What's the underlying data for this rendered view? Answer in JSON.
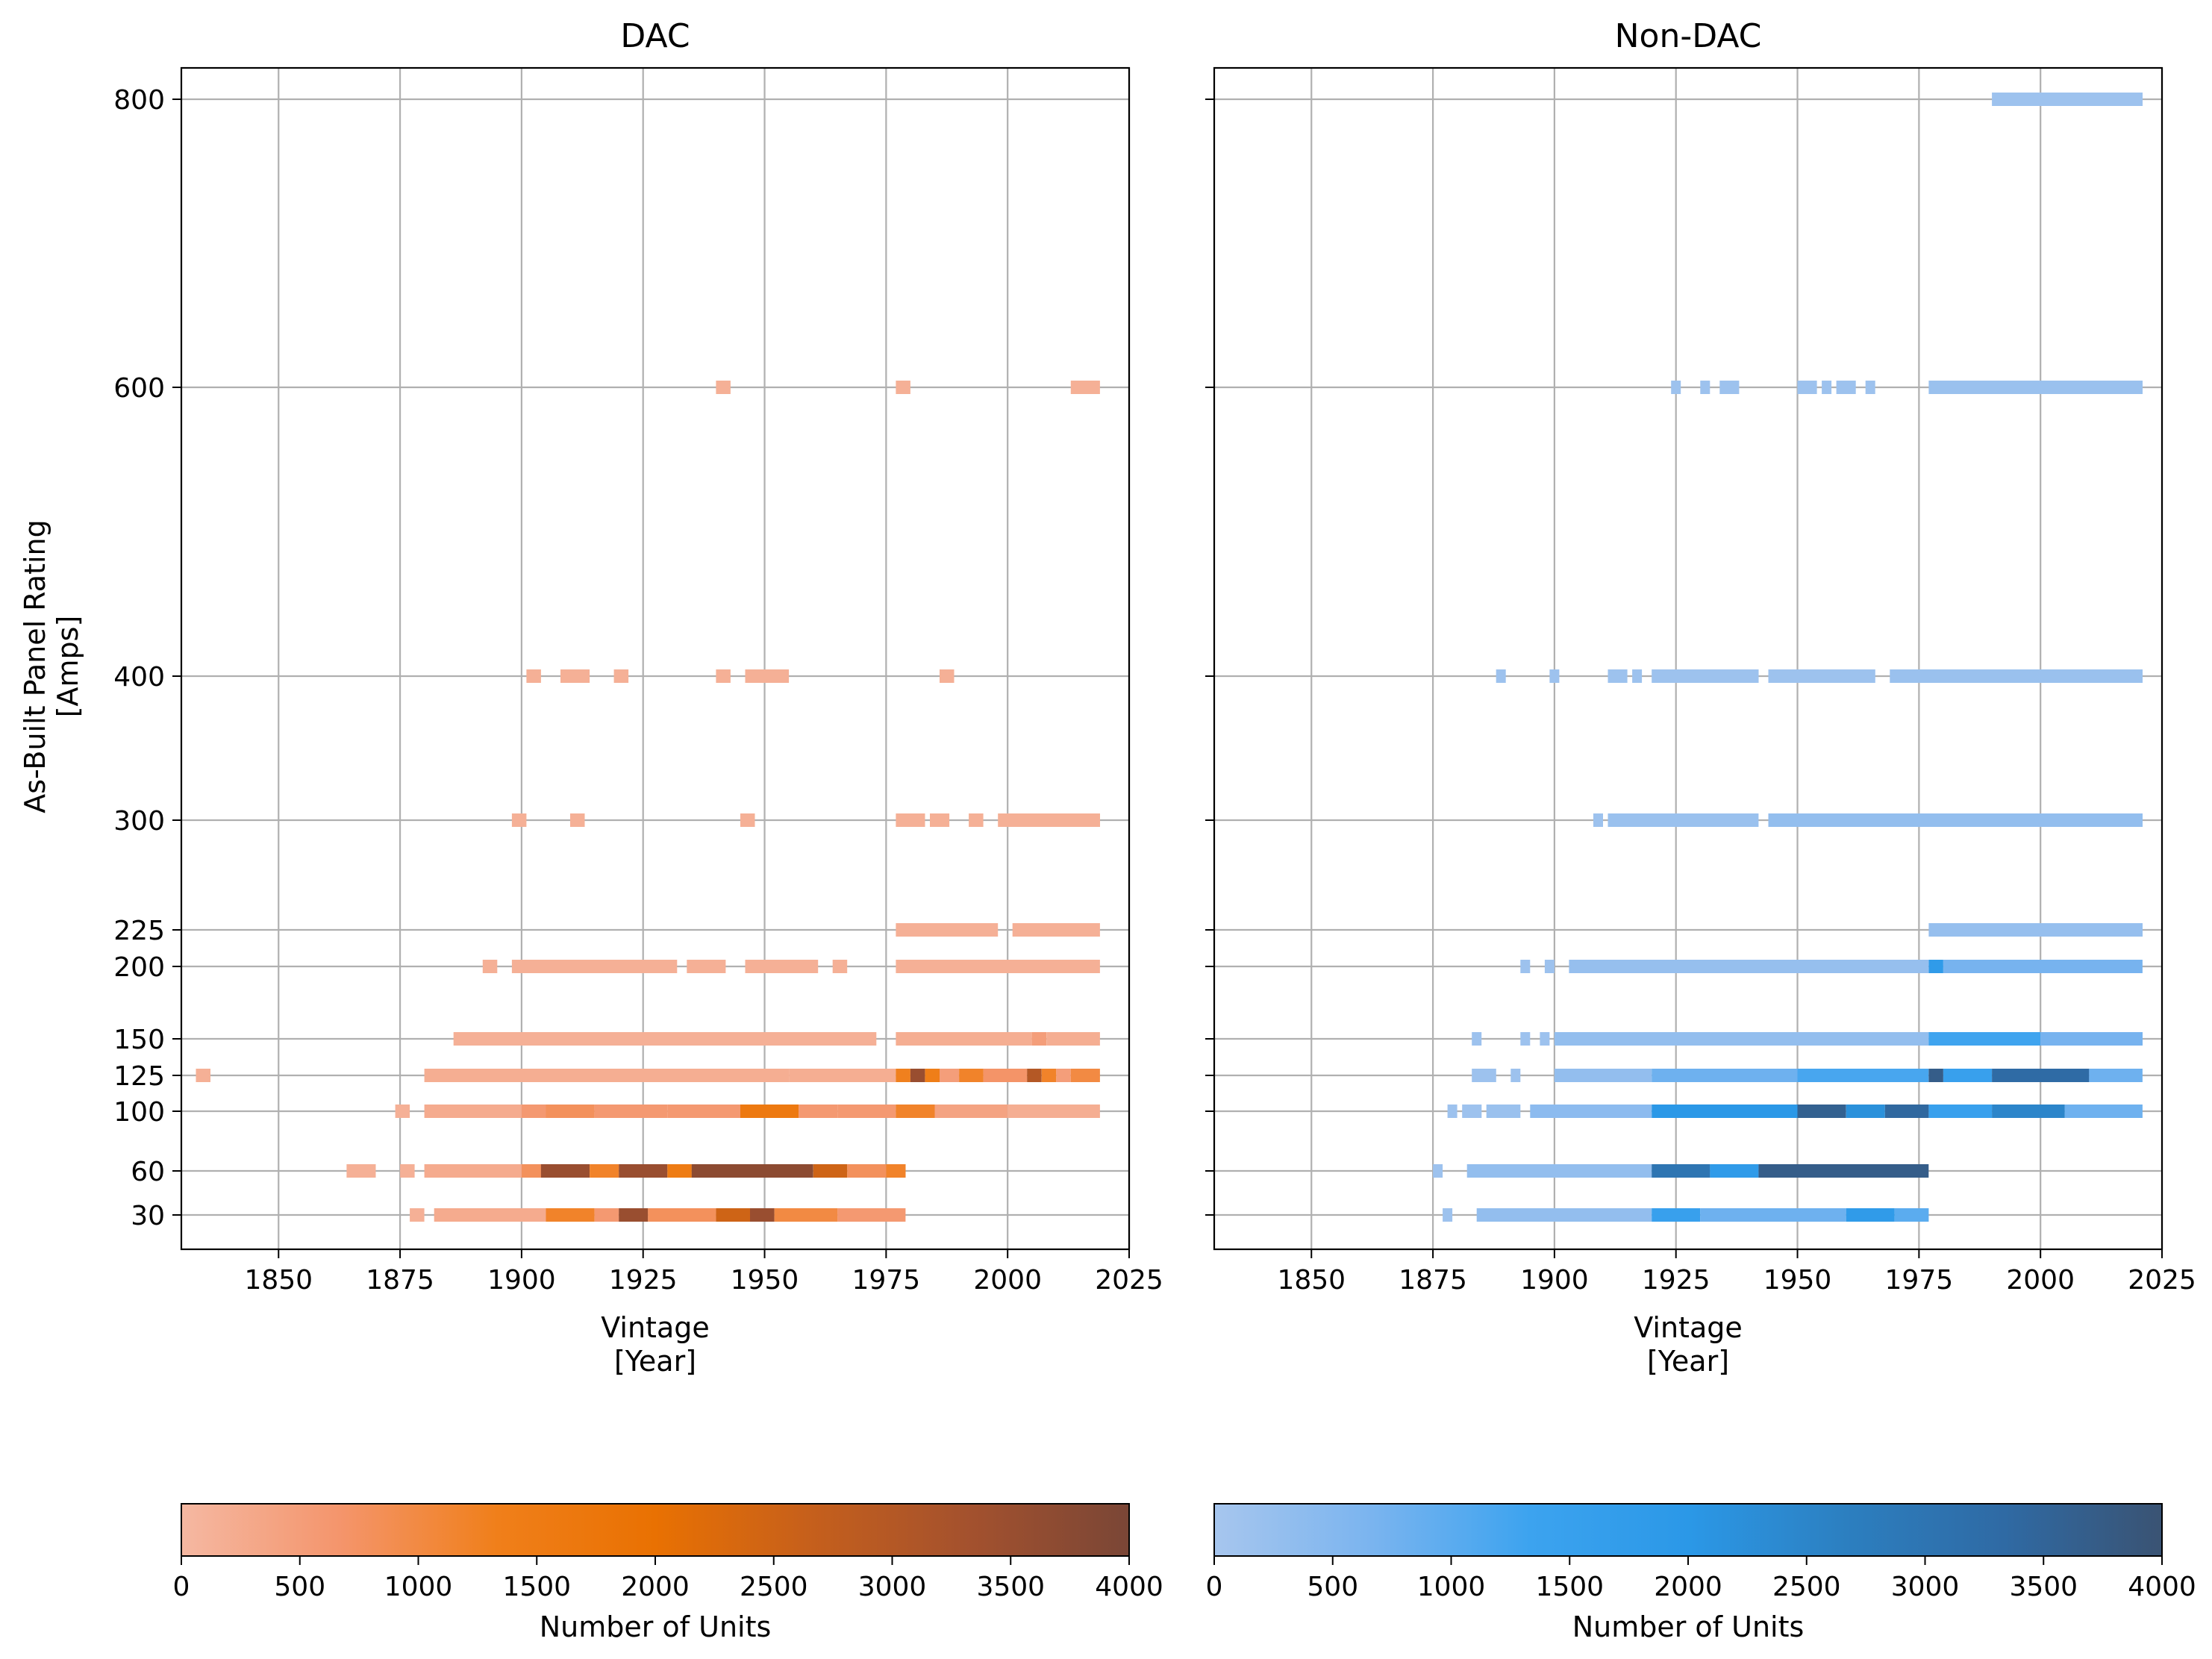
{
  "chart_data": [
    {
      "type": "heatmap",
      "title": "DAC",
      "xlabel": [
        "Vintage",
        "[Year]"
      ],
      "ylabel": [
        "As-Built Panel Rating",
        "[Amps]"
      ],
      "xlim": [
        1830,
        2025
      ],
      "xticks": [
        1850,
        1875,
        1900,
        1925,
        1950,
        1975,
        2000,
        2025
      ],
      "yticks": [
        30,
        60,
        100,
        125,
        150,
        200,
        225,
        300,
        400,
        600,
        800
      ],
      "grid": true,
      "colorbar": {
        "label": "Number of Units",
        "range": [
          0,
          4000
        ],
        "ticks": [
          0,
          500,
          1000,
          1500,
          2000,
          2500,
          3000,
          3500,
          4000
        ],
        "colors": [
          "#f5b8a2",
          "#f4956c",
          "#f07f1a",
          "#e97102",
          "#c55f1c",
          "#a3512e",
          "#7a4636"
        ]
      },
      "cells": [
        {
          "rating": 800,
          "segments": []
        },
        {
          "rating": 600,
          "segments": [
            [
              1940,
              1943,
              150
            ],
            [
              1977,
              1980,
              150
            ],
            [
              2013,
              2019,
              150
            ]
          ]
        },
        {
          "rating": 400,
          "segments": [
            [
              1901,
              1904,
              150
            ],
            [
              1908,
              1914,
              150
            ],
            [
              1919,
              1922,
              150
            ],
            [
              1940,
              1943,
              150
            ],
            [
              1946,
              1955,
              150
            ],
            [
              1986,
              1989,
              150
            ]
          ]
        },
        {
          "rating": 300,
          "segments": [
            [
              1898,
              1901,
              150
            ],
            [
              1910,
              1913,
              150
            ],
            [
              1945,
              1948,
              150
            ],
            [
              1977,
              1983,
              150
            ],
            [
              1984,
              1988,
              150
            ],
            [
              1992,
              1995,
              150
            ],
            [
              1998,
              2019,
              150
            ]
          ]
        },
        {
          "rating": 225,
          "segments": [
            [
              1977,
              1998,
              150
            ],
            [
              2001,
              2019,
              150
            ]
          ]
        },
        {
          "rating": 200,
          "segments": [
            [
              1892,
              1895,
              150
            ],
            [
              1898,
              1932,
              150
            ],
            [
              1934,
              1942,
              150
            ],
            [
              1946,
              1961,
              150
            ],
            [
              1964,
              1967,
              150
            ],
            [
              1977,
              2019,
              150
            ]
          ]
        },
        {
          "rating": 150,
          "segments": [
            [
              1886,
              1973,
              150
            ],
            [
              1977,
              2005,
              200
            ],
            [
              2005,
              2008,
              500
            ],
            [
              2008,
              2019,
              200
            ]
          ]
        },
        {
          "rating": 125,
          "segments": [
            [
              1833,
              1836,
              150
            ],
            [
              1880,
              1955,
              200
            ],
            [
              1955,
              1977,
              200
            ],
            [
              1977,
              1980,
              1300
            ],
            [
              1980,
              1983,
              3500
            ],
            [
              1983,
              1986,
              1400
            ],
            [
              1986,
              1990,
              500
            ],
            [
              1990,
              1995,
              1200
            ],
            [
              1995,
              2004,
              700
            ],
            [
              2004,
              2007,
              3000
            ],
            [
              2007,
              2010,
              1200
            ],
            [
              2010,
              2013,
              500
            ],
            [
              2013,
              2019,
              1000
            ]
          ]
        },
        {
          "rating": 100,
          "segments": [
            [
              1874,
              1877,
              150
            ],
            [
              1880,
              1900,
              250
            ],
            [
              1900,
              1905,
              600
            ],
            [
              1905,
              1915,
              800
            ],
            [
              1915,
              1930,
              600
            ],
            [
              1930,
              1945,
              600
            ],
            [
              1945,
              1957,
              1600
            ],
            [
              1957,
              1965,
              600
            ],
            [
              1965,
              1977,
              600
            ],
            [
              1977,
              1985,
              1200
            ],
            [
              1985,
              2000,
              400
            ],
            [
              2000,
              2019,
              200
            ]
          ]
        },
        {
          "rating": 60,
          "segments": [
            [
              1864,
              1870,
              150
            ],
            [
              1875,
              1878,
              150
            ],
            [
              1880,
              1900,
              250
            ],
            [
              1900,
              1904,
              800
            ],
            [
              1904,
              1914,
              3500
            ],
            [
              1914,
              1920,
              1200
            ],
            [
              1920,
              1930,
              3500
            ],
            [
              1930,
              1935,
              1500
            ],
            [
              1935,
              1960,
              3700
            ],
            [
              1960,
              1967,
              2500
            ],
            [
              1967,
              1975,
              800
            ],
            [
              1975,
              1979,
              1200
            ]
          ]
        },
        {
          "rating": 30,
          "segments": [
            [
              1877,
              1880,
              150
            ],
            [
              1882,
              1905,
              250
            ],
            [
              1905,
              1915,
              1200
            ],
            [
              1915,
              1920,
              600
            ],
            [
              1920,
              1926,
              3500
            ],
            [
              1926,
              1940,
              800
            ],
            [
              1940,
              1947,
              2500
            ],
            [
              1947,
              1952,
              3500
            ],
            [
              1952,
              1965,
              1000
            ],
            [
              1965,
              1979,
              600
            ]
          ]
        }
      ]
    },
    {
      "type": "heatmap",
      "title": "Non-DAC",
      "xlabel": [
        "Vintage",
        "[Year]"
      ],
      "xlim": [
        1830,
        2025
      ],
      "xticks": [
        1850,
        1875,
        1900,
        1925,
        1950,
        1975,
        2000,
        2025
      ],
      "yticks": [
        30,
        60,
        100,
        125,
        150,
        200,
        225,
        300,
        400,
        600,
        800
      ],
      "grid": true,
      "colorbar": {
        "label": "Number of Units",
        "range": [
          0,
          4000
        ],
        "ticks": [
          0,
          500,
          1000,
          1500,
          2000,
          2500,
          3000,
          3500,
          4000
        ],
        "colors": [
          "#a7c6ee",
          "#7ab4ef",
          "#3ca3ef",
          "#2b98e7",
          "#2c7fc0",
          "#2f6aa4",
          "#3a5373"
        ]
      },
      "cells": [
        {
          "rating": 800,
          "segments": [
            [
              1990,
              2021,
              150
            ]
          ]
        },
        {
          "rating": 600,
          "segments": [
            [
              1924,
              1926,
              150
            ],
            [
              1930,
              1932,
              150
            ],
            [
              1934,
              1938,
              150
            ],
            [
              1950,
              1954,
              150
            ],
            [
              1955,
              1957,
              150
            ],
            [
              1958,
              1962,
              150
            ],
            [
              1964,
              1966,
              150
            ],
            [
              1977,
              2021,
              200
            ]
          ]
        },
        {
          "rating": 400,
          "segments": [
            [
              1888,
              1890,
              150
            ],
            [
              1899,
              1901,
              150
            ],
            [
              1911,
              1915,
              150
            ],
            [
              1916,
              1918,
              150
            ],
            [
              1920,
              1942,
              150
            ],
            [
              1944,
              1966,
              150
            ],
            [
              1969,
              2021,
              200
            ]
          ]
        },
        {
          "rating": 300,
          "segments": [
            [
              1908,
              1910,
              150
            ],
            [
              1911,
              1942,
              200
            ],
            [
              1944,
              2021,
              300
            ]
          ]
        },
        {
          "rating": 225,
          "segments": [
            [
              1977,
              2021,
              250
            ]
          ]
        },
        {
          "rating": 200,
          "segments": [
            [
              1893,
              1895,
              150
            ],
            [
              1898,
              1900,
              150
            ],
            [
              1903,
              1977,
              250
            ],
            [
              1977,
              1980,
              1800
            ],
            [
              1980,
              2021,
              700
            ]
          ]
        },
        {
          "rating": 150,
          "segments": [
            [
              1883,
              1885,
              150
            ],
            [
              1893,
              1895,
              150
            ],
            [
              1897,
              1899,
              150
            ],
            [
              1900,
              1977,
              300
            ],
            [
              1977,
              2000,
              1300
            ],
            [
              2000,
              2021,
              700
            ]
          ]
        },
        {
          "rating": 125,
          "segments": [
            [
              1883,
              1888,
              150
            ],
            [
              1891,
              1893,
              150
            ],
            [
              1900,
              1920,
              300
            ],
            [
              1920,
              1950,
              800
            ],
            [
              1950,
              1977,
              1200
            ],
            [
              1977,
              1980,
              3700
            ],
            [
              1980,
              1990,
              1500
            ],
            [
              1990,
              2010,
              3300
            ],
            [
              2010,
              2021,
              800
            ]
          ]
        },
        {
          "rating": 100,
          "segments": [
            [
              1878,
              1880,
              150
            ],
            [
              1881,
              1885,
              150
            ],
            [
              1886,
              1893,
              200
            ],
            [
              1895,
              1920,
              400
            ],
            [
              1920,
              1950,
              2000
            ],
            [
              1950,
              1960,
              3600
            ],
            [
              1960,
              1968,
              2200
            ],
            [
              1968,
              1977,
              3400
            ],
            [
              1977,
              1990,
              1500
            ],
            [
              1990,
              2005,
              2500
            ],
            [
              2005,
              2021,
              800
            ]
          ]
        },
        {
          "rating": 60,
          "segments": [
            [
              1875,
              1877,
              150
            ],
            [
              1882,
              1920,
              300
            ],
            [
              1920,
              1932,
              3000
            ],
            [
              1932,
              1942,
              1800
            ],
            [
              1942,
              1977,
              3700
            ]
          ]
        },
        {
          "rating": 30,
          "segments": [
            [
              1877,
              1879,
              150
            ],
            [
              1884,
              1920,
              300
            ],
            [
              1920,
              1930,
              1500
            ],
            [
              1930,
              1960,
              800
            ],
            [
              1960,
              1970,
              1800
            ],
            [
              1970,
              1977,
              1000
            ]
          ]
        }
      ]
    }
  ]
}
